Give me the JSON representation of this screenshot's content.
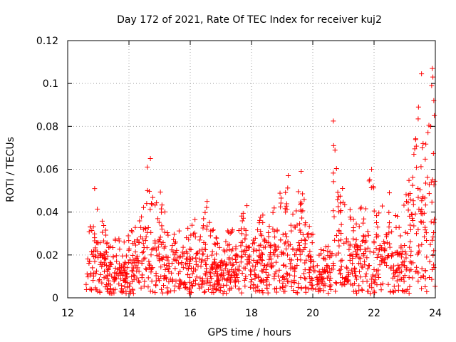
{
  "chart_data": {
    "type": "scatter",
    "title": "Day 172 of 2021, Rate Of TEC Index for receiver kuj2",
    "xlabel": "GPS time / hours",
    "ylabel": "ROTI / TECUs",
    "xlim": [
      12,
      24
    ],
    "ylim": [
      0,
      0.12
    ],
    "xticks": [
      12,
      14,
      16,
      18,
      20,
      22,
      24
    ],
    "xtick_labels": [
      "12",
      "14",
      "16",
      "18",
      "20",
      "22",
      "24"
    ],
    "yticks": [
      0,
      0.02,
      0.04,
      0.06,
      0.08,
      0.1,
      0.12
    ],
    "ytick_labels": [
      "0",
      "0.02",
      "0.04",
      "0.06",
      "0.08",
      "0.1",
      "0.12"
    ],
    "grid": true,
    "marker": "+",
    "marker_color": "#ff0000",
    "series": [
      {
        "name": "ROTI",
        "x_start": 12.6,
        "x_end": 24.0,
        "typical_range": [
          0.002,
          0.03
        ],
        "envelope": [
          {
            "x": 12.6,
            "y": 0.028
          },
          {
            "x": 12.8,
            "y": 0.036
          },
          {
            "x": 12.85,
            "y": 0.051
          },
          {
            "x": 13.1,
            "y": 0.037
          },
          {
            "x": 13.6,
            "y": 0.028
          },
          {
            "x": 13.9,
            "y": 0.029
          },
          {
            "x": 14.3,
            "y": 0.035
          },
          {
            "x": 14.5,
            "y": 0.046
          },
          {
            "x": 14.65,
            "y": 0.065
          },
          {
            "x": 14.8,
            "y": 0.045
          },
          {
            "x": 15.0,
            "y": 0.053
          },
          {
            "x": 15.3,
            "y": 0.033
          },
          {
            "x": 15.7,
            "y": 0.031
          },
          {
            "x": 16.0,
            "y": 0.035
          },
          {
            "x": 16.3,
            "y": 0.039
          },
          {
            "x": 16.5,
            "y": 0.045
          },
          {
            "x": 16.8,
            "y": 0.03
          },
          {
            "x": 17.2,
            "y": 0.032
          },
          {
            "x": 17.6,
            "y": 0.036
          },
          {
            "x": 17.85,
            "y": 0.043
          },
          {
            "x": 18.1,
            "y": 0.028
          },
          {
            "x": 18.35,
            "y": 0.041
          },
          {
            "x": 18.5,
            "y": 0.03
          },
          {
            "x": 18.8,
            "y": 0.047
          },
          {
            "x": 19.0,
            "y": 0.052
          },
          {
            "x": 19.2,
            "y": 0.057
          },
          {
            "x": 19.4,
            "y": 0.036
          },
          {
            "x": 19.6,
            "y": 0.059
          },
          {
            "x": 19.8,
            "y": 0.043
          },
          {
            "x": 20.0,
            "y": 0.03
          },
          {
            "x": 20.3,
            "y": 0.022
          },
          {
            "x": 20.6,
            "y": 0.03
          },
          {
            "x": 20.7,
            "y": 0.082
          },
          {
            "x": 20.9,
            "y": 0.05
          },
          {
            "x": 21.0,
            "y": 0.053
          },
          {
            "x": 21.3,
            "y": 0.04
          },
          {
            "x": 21.6,
            "y": 0.048
          },
          {
            "x": 21.8,
            "y": 0.053
          },
          {
            "x": 21.9,
            "y": 0.06
          },
          {
            "x": 22.2,
            "y": 0.045
          },
          {
            "x": 22.4,
            "y": 0.049
          },
          {
            "x": 22.6,
            "y": 0.04
          },
          {
            "x": 22.9,
            "y": 0.038
          },
          {
            "x": 23.2,
            "y": 0.059
          },
          {
            "x": 23.4,
            "y": 0.081
          },
          {
            "x": 23.5,
            "y": 0.094
          },
          {
            "x": 23.65,
            "y": 0.07
          },
          {
            "x": 23.8,
            "y": 0.104
          },
          {
            "x": 23.9,
            "y": 0.107
          },
          {
            "x": 24.0,
            "y": 0.05
          }
        ],
        "outliers": [
          {
            "x": 20.67,
            "y": 0.0825
          },
          {
            "x": 20.68,
            "y": 0.071
          },
          {
            "x": 23.55,
            "y": 0.1045
          },
          {
            "x": 23.9,
            "y": 0.107
          },
          {
            "x": 23.92,
            "y": 0.103
          },
          {
            "x": 23.88,
            "y": 0.099
          },
          {
            "x": 23.95,
            "y": 0.092
          },
          {
            "x": 23.45,
            "y": 0.089
          },
          {
            "x": 23.97,
            "y": 0.085
          },
          {
            "x": 23.85,
            "y": 0.08
          },
          {
            "x": 23.6,
            "y": 0.072
          },
          {
            "x": 23.3,
            "y": 0.067
          },
          {
            "x": 14.7,
            "y": 0.065
          },
          {
            "x": 14.6,
            "y": 0.061
          },
          {
            "x": 21.92,
            "y": 0.06
          },
          {
            "x": 19.62,
            "y": 0.059
          },
          {
            "x": 19.2,
            "y": 0.057
          },
          {
            "x": 22.5,
            "y": 0.049
          },
          {
            "x": 12.88,
            "y": 0.051
          },
          {
            "x": 16.55,
            "y": 0.045
          },
          {
            "x": 17.85,
            "y": 0.043
          }
        ]
      }
    ]
  }
}
